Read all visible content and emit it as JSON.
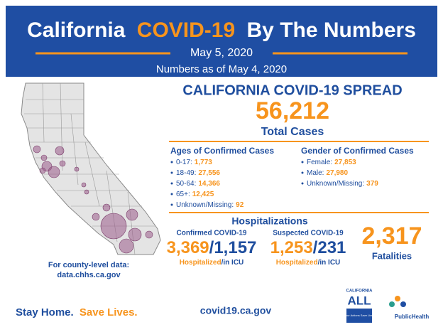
{
  "header": {
    "title": [
      "California",
      "COVID-19",
      "By The Numbers"
    ],
    "date": "May 5, 2020",
    "as_of": "Numbers as of May 4, 2020"
  },
  "spread": {
    "title": "CALIFORNIA COVID-19 SPREAD",
    "total": "56,212",
    "total_label": "Total Cases"
  },
  "ages": {
    "title": "Ages of Confirmed Cases",
    "items": [
      {
        "label": "0-17:",
        "value": "1,773"
      },
      {
        "label": "18-49:",
        "value": "27,556"
      },
      {
        "label": "50-64:",
        "value": "14,366"
      },
      {
        "label": "65+:",
        "value": "12,425"
      },
      {
        "label": "Unknown/Missing:",
        "value": "92"
      }
    ]
  },
  "gender": {
    "title": "Gender of Confirmed Cases",
    "items": [
      {
        "label": "Female:",
        "value": "27,853"
      },
      {
        "label": "Male:",
        "value": "27,980"
      },
      {
        "label": "Unknown/Missing:",
        "value": "379"
      }
    ]
  },
  "hospitalizations": {
    "title": "Hospitalizations",
    "confirmed": {
      "label": "Confirmed COVID-19",
      "value": [
        "3,369",
        "/1,157"
      ]
    },
    "suspected": {
      "label": "Suspected COVID-19",
      "value": [
        "1,253",
        "/231"
      ]
    },
    "legend": [
      "Hospitalized",
      "/in ICU"
    ]
  },
  "fatalities": {
    "value": "2,317",
    "label": "Fatalities"
  },
  "county": {
    "text": "For county-level data:",
    "url": "data.chhs.ca.gov"
  },
  "footer": {
    "slogan": [
      "Stay Home.",
      "Save Lives."
    ],
    "website": "covid19.ca.gov",
    "logos": {
      "ca_all": [
        "CALIFORNIA",
        "ALL",
        "Your Actions Save Lives"
      ],
      "public_health": "PublicHealth"
    }
  }
}
